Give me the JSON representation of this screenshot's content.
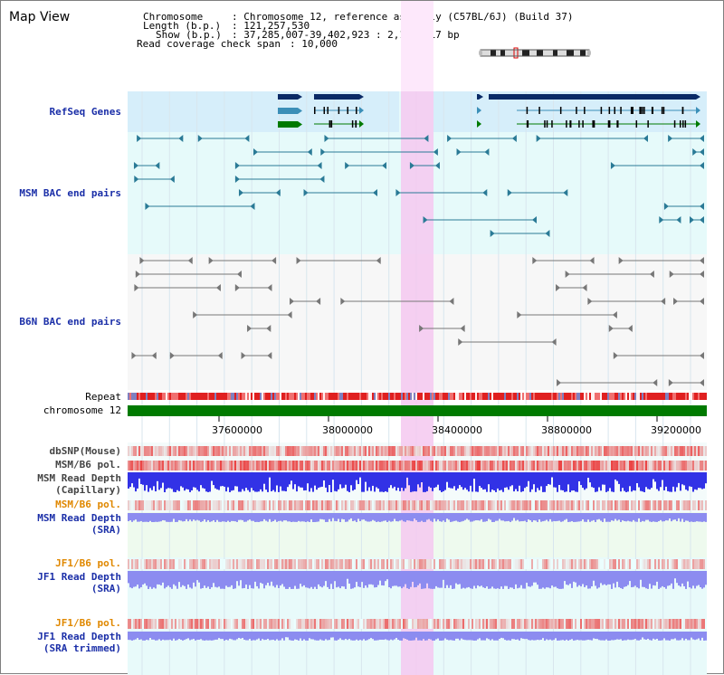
{
  "window": {
    "title": "Map View"
  },
  "info": {
    "chromosome_key": "Chromosome",
    "chromosome_value": ": Chromosome 12, reference assembly (C57BL/6J) (Build 37)",
    "length_key": "Length (b.p.)",
    "length_value": ": 121,257,530",
    "show_key": "Show (b.p.)",
    "show_value": ": 37,285,007-39,402,923 : 2,117,917 bp",
    "coverage_key": "Read coverage check span",
    "coverage_value": ": 10,000"
  },
  "tracks": {
    "refseq": "RefSeq Genes",
    "msm_bac": "MSM BAC end pairs",
    "b6n_bac": "B6N BAC end pairs",
    "repeat": "Repeat",
    "chromosome": "chromosome 12",
    "dbsnp": "dbSNP(Mouse)",
    "msm_b6_pol_1": "MSM/B6 pol.",
    "msm_read_depth_cap_1": "MSM Read Depth",
    "msm_read_depth_cap_2": "(Capillary)",
    "msm_b6_pol_2": "MSM/B6 pol.",
    "msm_read_depth_sra_1": "MSM Read Depth",
    "msm_read_depth_sra_2": "(SRA)",
    "jf1_b6_pol_1": "JF1/B6 pol.",
    "jf1_read_depth_1": "JF1 Read Depth",
    "jf1_read_depth_2": "(SRA)",
    "jf1_b6_pol_2": "JF1/B6 pol.",
    "jf1_read_depth_trim_1": "JF1 Read Depth",
    "jf1_read_depth_trim_2": "(SRA trimmed)"
  },
  "axis": {
    "ticks": [
      "37600000",
      "38000000",
      "38400000",
      "38800000",
      "39200000"
    ]
  },
  "colors": {
    "refseq_bg": "#d6eefa",
    "bac_bg": "#e6fafa",
    "highlight": "#f5c8f0",
    "chromosome_bar": "#007a00",
    "gene_navy": "#0a2a66",
    "gene_teal": "#3b8fb8",
    "gene_green": "#007a00",
    "msm_line": "#2a7a96",
    "b6n_line": "#777777",
    "depth_blue": "#3232e6",
    "depth_light": "#8c8cf0",
    "snp_red": "#e04040"
  }
}
